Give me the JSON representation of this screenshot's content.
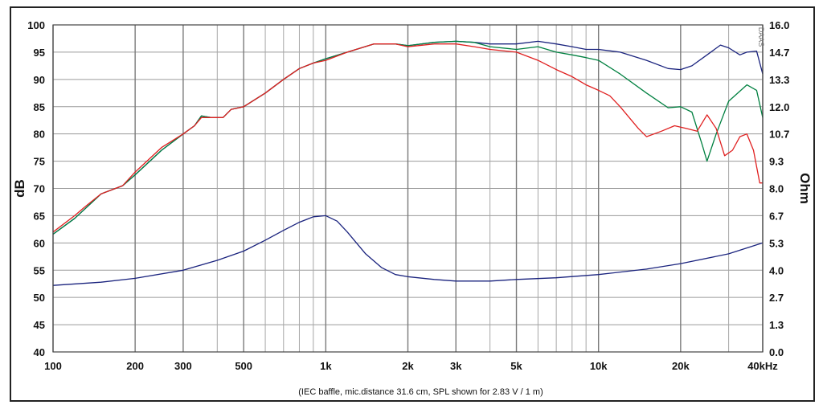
{
  "chart_data": {
    "type": "line",
    "caption": "(IEC baffle, mic.distance 31.6 cm, SPL shown for 2.83 V / 1 m)",
    "watermark": "DAAS",
    "xaxis": {
      "scale": "log",
      "range": [
        100,
        40000
      ],
      "tick_values": [
        100,
        200,
        300,
        500,
        1000,
        2000,
        3000,
        5000,
        10000,
        20000,
        40000
      ],
      "tick_labels": [
        "100",
        "200",
        "300",
        "500",
        "1k",
        "2k",
        "3k",
        "5k",
        "10k",
        "20k",
        "40kHz"
      ]
    },
    "yaxis_left": {
      "label": "dB",
      "range": [
        40,
        100
      ],
      "tick_labels": [
        "40",
        "45",
        "50",
        "55",
        "60",
        "65",
        "70",
        "75",
        "80",
        "85",
        "90",
        "95",
        "100"
      ]
    },
    "yaxis_right": {
      "label": "Ohm",
      "range": [
        0,
        16
      ],
      "tick_labels": [
        "0.0",
        "1.3",
        "2.7",
        "4.0",
        "5.3",
        "6.7",
        "8.0",
        "9.3",
        "10.7",
        "12.0",
        "13.3",
        "14.7",
        "16.0"
      ]
    },
    "grid": true,
    "series": [
      {
        "axis": "left",
        "color": "#1a237e",
        "points": [
          [
            100,
            61.6
          ],
          [
            120,
            64.5
          ],
          [
            150,
            69
          ],
          [
            180,
            70.5
          ],
          [
            200,
            72.5
          ],
          [
            250,
            77
          ],
          [
            300,
            80
          ],
          [
            330,
            81.5
          ],
          [
            350,
            83.3
          ],
          [
            380,
            83
          ],
          [
            420,
            83
          ],
          [
            450,
            84.5
          ],
          [
            500,
            85
          ],
          [
            600,
            87.5
          ],
          [
            700,
            90
          ],
          [
            800,
            92
          ],
          [
            900,
            93
          ],
          [
            1000,
            93.8
          ],
          [
            1200,
            95
          ],
          [
            1500,
            96.5
          ],
          [
            1800,
            96.5
          ],
          [
            2000,
            96.2
          ],
          [
            2500,
            96.8
          ],
          [
            3000,
            97
          ],
          [
            3500,
            96.8
          ],
          [
            4000,
            96.5
          ],
          [
            5000,
            96.5
          ],
          [
            6000,
            97
          ],
          [
            7000,
            96.5
          ],
          [
            8000,
            96
          ],
          [
            9000,
            95.5
          ],
          [
            10000,
            95.5
          ],
          [
            12000,
            95
          ],
          [
            15000,
            93.5
          ],
          [
            18000,
            92
          ],
          [
            20000,
            91.8
          ],
          [
            22000,
            92.5
          ],
          [
            25000,
            94.5
          ],
          [
            28000,
            96.3
          ],
          [
            30000,
            95.8
          ],
          [
            33000,
            94.5
          ],
          [
            35000,
            95
          ],
          [
            38000,
            95.2
          ],
          [
            40000,
            91
          ]
        ]
      },
      {
        "axis": "left",
        "color": "#008040",
        "points": [
          [
            100,
            61.6
          ],
          [
            120,
            64.5
          ],
          [
            150,
            69
          ],
          [
            180,
            70.5
          ],
          [
            200,
            72.5
          ],
          [
            250,
            77
          ],
          [
            300,
            80
          ],
          [
            330,
            81.5
          ],
          [
            350,
            83.3
          ],
          [
            380,
            83
          ],
          [
            420,
            83
          ],
          [
            450,
            84.5
          ],
          [
            500,
            85
          ],
          [
            600,
            87.5
          ],
          [
            700,
            90
          ],
          [
            800,
            92
          ],
          [
            900,
            93
          ],
          [
            1000,
            93.8
          ],
          [
            1200,
            95
          ],
          [
            1500,
            96.5
          ],
          [
            1800,
            96.5
          ],
          [
            2000,
            96.2
          ],
          [
            2500,
            96.8
          ],
          [
            3000,
            97
          ],
          [
            3500,
            96.8
          ],
          [
            4000,
            96
          ],
          [
            5000,
            95.5
          ],
          [
            6000,
            96
          ],
          [
            7000,
            95
          ],
          [
            8000,
            94.5
          ],
          [
            9000,
            94
          ],
          [
            10000,
            93.5
          ],
          [
            12000,
            91
          ],
          [
            15000,
            87.5
          ],
          [
            18000,
            84.8
          ],
          [
            20000,
            85
          ],
          [
            22000,
            84
          ],
          [
            24000,
            78
          ],
          [
            25000,
            75
          ],
          [
            27000,
            80
          ],
          [
            30000,
            86
          ],
          [
            35000,
            89
          ],
          [
            38000,
            88
          ],
          [
            40000,
            83
          ]
        ]
      },
      {
        "axis": "left",
        "color": "#e02020",
        "points": [
          [
            100,
            62
          ],
          [
            120,
            65
          ],
          [
            130,
            66.5
          ],
          [
            150,
            69
          ],
          [
            180,
            70.5
          ],
          [
            200,
            73
          ],
          [
            250,
            77.5
          ],
          [
            300,
            80
          ],
          [
            330,
            81.5
          ],
          [
            350,
            83
          ],
          [
            380,
            83
          ],
          [
            420,
            83
          ],
          [
            450,
            84.5
          ],
          [
            500,
            85
          ],
          [
            600,
            87.5
          ],
          [
            700,
            90
          ],
          [
            800,
            92
          ],
          [
            900,
            93
          ],
          [
            1000,
            93.5
          ],
          [
            1200,
            95
          ],
          [
            1500,
            96.5
          ],
          [
            1800,
            96.5
          ],
          [
            2000,
            96
          ],
          [
            2500,
            96.5
          ],
          [
            3000,
            96.5
          ],
          [
            3500,
            96
          ],
          [
            4000,
            95.5
          ],
          [
            5000,
            95
          ],
          [
            6000,
            93.5
          ],
          [
            7000,
            91.8
          ],
          [
            8000,
            90.5
          ],
          [
            9000,
            89
          ],
          [
            10000,
            88
          ],
          [
            11000,
            87
          ],
          [
            12000,
            85
          ],
          [
            14000,
            81
          ],
          [
            15000,
            79.5
          ],
          [
            17000,
            80.5
          ],
          [
            19000,
            81.5
          ],
          [
            21000,
            81
          ],
          [
            23000,
            80.5
          ],
          [
            25000,
            83.5
          ],
          [
            27000,
            81
          ],
          [
            29000,
            76
          ],
          [
            31000,
            77
          ],
          [
            33000,
            79.5
          ],
          [
            35000,
            80
          ],
          [
            37000,
            77
          ],
          [
            39000,
            71
          ],
          [
            40000,
            71
          ]
        ]
      },
      {
        "axis": "left",
        "color": "#1a237e",
        "points": [
          [
            100,
            52.2
          ],
          [
            150,
            52.8
          ],
          [
            200,
            53.5
          ],
          [
            300,
            55
          ],
          [
            400,
            56.8
          ],
          [
            500,
            58.5
          ],
          [
            600,
            60.5
          ],
          [
            700,
            62.3
          ],
          [
            800,
            63.8
          ],
          [
            900,
            64.8
          ],
          [
            1000,
            65
          ],
          [
            1100,
            64
          ],
          [
            1200,
            62
          ],
          [
            1400,
            58
          ],
          [
            1600,
            55.5
          ],
          [
            1800,
            54.2
          ],
          [
            2000,
            53.8
          ],
          [
            2500,
            53.3
          ],
          [
            3000,
            53
          ],
          [
            4000,
            53
          ],
          [
            5000,
            53.3
          ],
          [
            7000,
            53.6
          ],
          [
            10000,
            54.2
          ],
          [
            15000,
            55.2
          ],
          [
            20000,
            56.2
          ],
          [
            30000,
            58
          ],
          [
            40000,
            60
          ]
        ]
      }
    ]
  }
}
